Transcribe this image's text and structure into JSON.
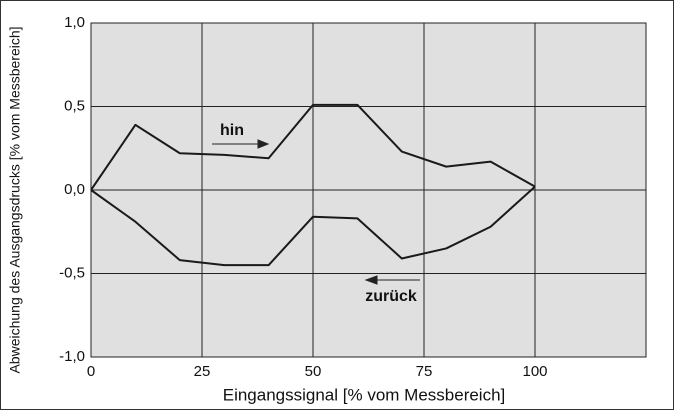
{
  "chart_data": {
    "type": "line",
    "xlabel": "Eingangssignal [% vom Messbereich]",
    "ylabel": "Abweichung des Ausgangsdrucks [% vom Messbereich]",
    "x": [
      0,
      10,
      20,
      30,
      40,
      50,
      60,
      70,
      80,
      90,
      100
    ],
    "series": [
      {
        "name": "hin",
        "color": "#1a1a1a",
        "values": [
          0,
          0.39,
          0.22,
          0.21,
          0.19,
          0.51,
          0.51,
          0.23,
          0.14,
          0.17,
          0.02
        ]
      },
      {
        "name": "zurück",
        "color": "#1a1a1a",
        "values": [
          0,
          -0.19,
          -0.42,
          -0.45,
          -0.45,
          -0.16,
          -0.17,
          -0.41,
          -0.35,
          -0.22,
          0.02
        ]
      }
    ],
    "xlim": [
      0,
      125
    ],
    "xticks": [
      0,
      25,
      50,
      75,
      100
    ],
    "ylim": [
      -1,
      1
    ],
    "yticks": [
      {
        "value": -1,
        "label": "-1,0"
      },
      {
        "value": -0.5,
        "label": "-0,5"
      },
      {
        "value": 0,
        "label": "0,0"
      },
      {
        "value": 0.5,
        "label": "0,5"
      },
      {
        "value": 1,
        "label": "1,0"
      }
    ],
    "grid": true,
    "background": "#e0e0e0"
  }
}
